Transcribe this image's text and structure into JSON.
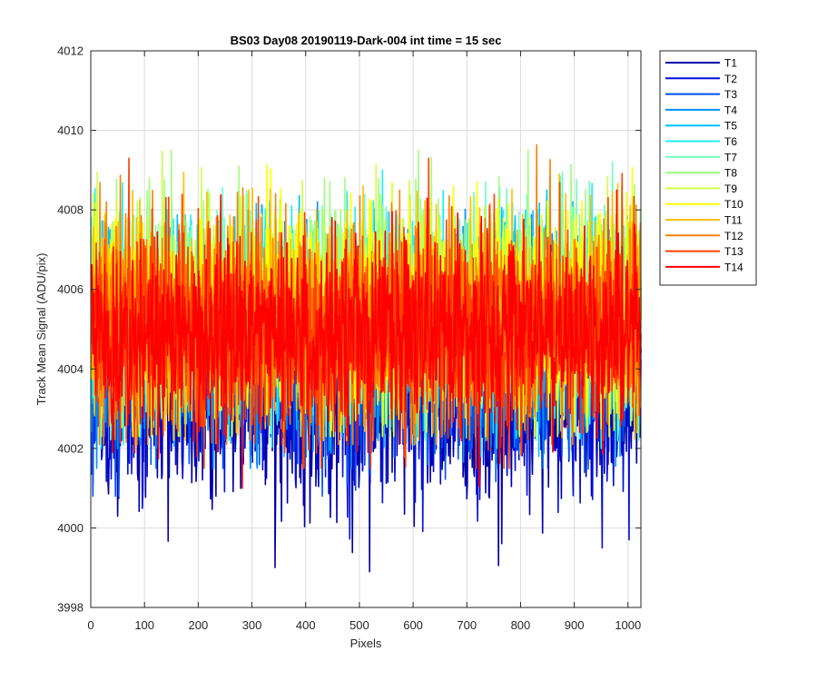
{
  "chart_data": {
    "type": "line",
    "title": "BS03 Day08 20190119-Dark-004 int time = 15 sec",
    "xlabel": "Pixels",
    "ylabel": "Track Mean Signal (ADU/pix)",
    "xlim": [
      0,
      1024
    ],
    "ylim": [
      3998,
      4012
    ],
    "xticks": [
      0,
      100,
      200,
      300,
      400,
      500,
      600,
      700,
      800,
      900,
      1000
    ],
    "yticks": [
      3998,
      4000,
      4002,
      4004,
      4006,
      4008,
      4010,
      4012
    ],
    "grid": true,
    "legend_location": "outside-top-right",
    "series_defaults": {
      "x_start": 1,
      "x_end": 1024
    },
    "series": [
      {
        "name": "T1",
        "color": "#0000aa",
        "mean": 4003.2,
        "spread": 1.25,
        "min": 3998.9,
        "max": 4006.0
      },
      {
        "name": "T2",
        "color": "#0010d8",
        "mean": 4003.6,
        "spread": 1.2,
        "min": 3999.5,
        "max": 4006.3
      },
      {
        "name": "T3",
        "color": "#0050f0",
        "mean": 4004.2,
        "spread": 1.2,
        "min": 4000.8,
        "max": 4007.0
      },
      {
        "name": "T4",
        "color": "#0090f5",
        "mean": 4004.8,
        "spread": 1.3,
        "min": 4001.5,
        "max": 4008.2
      },
      {
        "name": "T5",
        "color": "#00c0ff",
        "mean": 4005.2,
        "spread": 1.3,
        "min": 4001.8,
        "max": 4008.5
      },
      {
        "name": "T6",
        "color": "#20f0f0",
        "mean": 4005.4,
        "spread": 1.3,
        "min": 4002.0,
        "max": 4009.0
      },
      {
        "name": "T7",
        "color": "#70ffc0",
        "mean": 4005.5,
        "spread": 1.3,
        "min": 4002.2,
        "max": 4009.2
      },
      {
        "name": "T8",
        "color": "#a0ff80",
        "mean": 4005.6,
        "spread": 1.3,
        "min": 4002.3,
        "max": 4009.5
      },
      {
        "name": "T9",
        "color": "#d0ff40",
        "mean": 4005.5,
        "spread": 1.3,
        "min": 4002.3,
        "max": 4009.8
      },
      {
        "name": "T10",
        "color": "#ffff00",
        "mean": 4005.4,
        "spread": 1.3,
        "min": 4002.3,
        "max": 4009.9
      },
      {
        "name": "T11",
        "color": "#ffc000",
        "mean": 4005.3,
        "spread": 1.3,
        "min": 4002.2,
        "max": 4010.2
      },
      {
        "name": "T12",
        "color": "#ff8000",
        "mean": 4005.2,
        "spread": 1.3,
        "min": 4002.1,
        "max": 4010.1
      },
      {
        "name": "T13",
        "color": "#ff4000",
        "mean": 4005.0,
        "spread": 1.3,
        "min": 4001.5,
        "max": 4009.3
      },
      {
        "name": "T14",
        "color": "#ff0000",
        "mean": 4004.9,
        "spread": 1.2,
        "min": 4001.0,
        "max": 4008.5
      }
    ]
  }
}
